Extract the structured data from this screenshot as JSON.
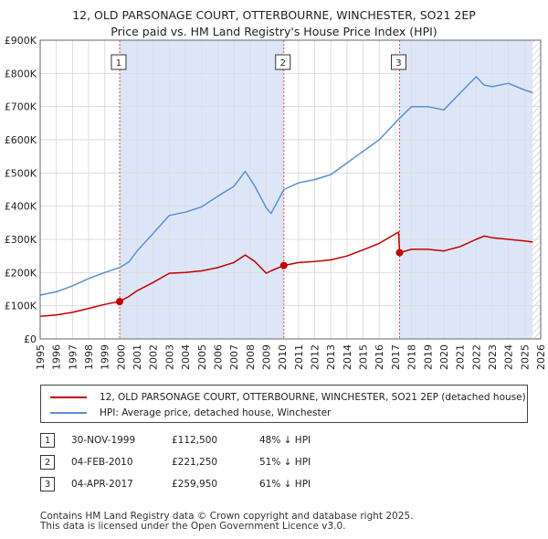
{
  "title_line1": "12, OLD PARSONAGE COURT, OTTERBOURNE, WINCHESTER, SO21 2EP",
  "title_line2": "Price paid vs. HM Land Registry's House Price Index (HPI)",
  "legend": {
    "property": "12, OLD PARSONAGE COURT, OTTERBOURNE, WINCHESTER, SO21 2EP (detached house)",
    "hpi": "HPI: Average price, detached house, Winchester"
  },
  "sales": [
    {
      "num": "1",
      "date": "30-NOV-1999",
      "price": "£112,500",
      "hpi_delta": "48% ↓ HPI"
    },
    {
      "num": "2",
      "date": "04-FEB-2010",
      "price": "£221,250",
      "hpi_delta": "51% ↓ HPI"
    },
    {
      "num": "3",
      "date": "04-APR-2017",
      "price": "£259,950",
      "hpi_delta": "61% ↓ HPI"
    }
  ],
  "footer": {
    "line1": "Contains HM Land Registry data © Crown copyright and database right 2025.",
    "line2": "This data is licensed under the Open Government Licence v3.0."
  },
  "colors": {
    "property": "#c00000",
    "hpi": "#5b8fd0",
    "shade": "#dde6f8",
    "grid": "#dddddd",
    "vline": "#e05050"
  },
  "chart_data": {
    "type": "line",
    "title": "12, OLD PARSONAGE COURT, OTTERBOURNE, WINCHESTER, SO21 2EP — Price paid vs. HM Land Registry's House Price Index (HPI)",
    "xlabel": "",
    "ylabel": "",
    "xlim": [
      1995,
      2026
    ],
    "ylim": [
      0,
      900000
    ],
    "x_ticks": [
      1995,
      1996,
      1997,
      1998,
      1999,
      2000,
      2001,
      2002,
      2003,
      2004,
      2005,
      2006,
      2007,
      2008,
      2009,
      2010,
      2011,
      2012,
      2013,
      2014,
      2015,
      2016,
      2017,
      2018,
      2019,
      2020,
      2021,
      2022,
      2023,
      2024,
      2025,
      2026
    ],
    "y_ticks": [
      {
        "value": 0,
        "label": "£0"
      },
      {
        "value": 100000,
        "label": "£100K"
      },
      {
        "value": 200000,
        "label": "£200K"
      },
      {
        "value": 300000,
        "label": "£300K"
      },
      {
        "value": 400000,
        "label": "£400K"
      },
      {
        "value": 500000,
        "label": "£500K"
      },
      {
        "value": 600000,
        "label": "£600K"
      },
      {
        "value": 700000,
        "label": "£700K"
      },
      {
        "value": 800000,
        "label": "£800K"
      },
      {
        "value": 900000,
        "label": "£900K"
      }
    ],
    "shaded_ranges": [
      [
        1999.92,
        2010.09
      ],
      [
        2017.26,
        2025.5
      ]
    ],
    "hatched_from": 2025.5,
    "sale_markers": [
      {
        "num": "1",
        "x": 1999.92,
        "y": 112500
      },
      {
        "num": "2",
        "x": 2010.09,
        "y": 221250
      },
      {
        "num": "3",
        "x": 2017.26,
        "y": 259950
      }
    ],
    "series": [
      {
        "name": "HPI: Average price, detached house, Winchester",
        "x": [
          1995,
          1996,
          1997,
          1998,
          1999,
          1999.92,
          2000.5,
          2001,
          2002,
          2003,
          2004,
          2005,
          2006,
          2007,
          2007.7,
          2008.3,
          2009,
          2009.3,
          2010.09,
          2011,
          2012,
          2013,
          2014,
          2015,
          2016,
          2017.26,
          2018,
          2019,
          2020,
          2021,
          2022,
          2022.5,
          2023,
          2024,
          2025,
          2025.5
        ],
        "values": [
          132000,
          142000,
          160000,
          182000,
          200000,
          215000,
          232000,
          265000,
          318000,
          372000,
          382000,
          398000,
          430000,
          460000,
          505000,
          460000,
          395000,
          378000,
          450000,
          470000,
          480000,
          495000,
          530000,
          565000,
          600000,
          665000,
          700000,
          700000,
          690000,
          740000,
          790000,
          765000,
          760000,
          770000,
          750000,
          742000
        ]
      },
      {
        "name": "12, OLD PARSONAGE COURT, OTTERBOURNE, WINCHESTER, SO21 2EP (detached house)",
        "x": [
          1995,
          1996,
          1997,
          1998,
          1999,
          1999.92,
          2000.5,
          2001,
          2002,
          2003,
          2004,
          2005,
          2006,
          2007,
          2007.7,
          2008.3,
          2009,
          2009.3,
          2010.09,
          2011,
          2012,
          2013,
          2014,
          2015,
          2016,
          2017.2,
          2017.26,
          2018,
          2019,
          2020,
          2021,
          2022,
          2022.5,
          2023,
          2024,
          2025,
          2025.5
        ],
        "values": [
          68000,
          72000,
          80000,
          92000,
          104000,
          112500,
          128000,
          145000,
          170000,
          198000,
          200000,
          205000,
          215000,
          230000,
          253000,
          233000,
          198000,
          205000,
          221250,
          230000,
          233000,
          238000,
          250000,
          268000,
          288000,
          322000,
          259950,
          270000,
          270000,
          265000,
          278000,
          300000,
          310000,
          305000,
          300000,
          295000,
          292000
        ]
      }
    ]
  }
}
